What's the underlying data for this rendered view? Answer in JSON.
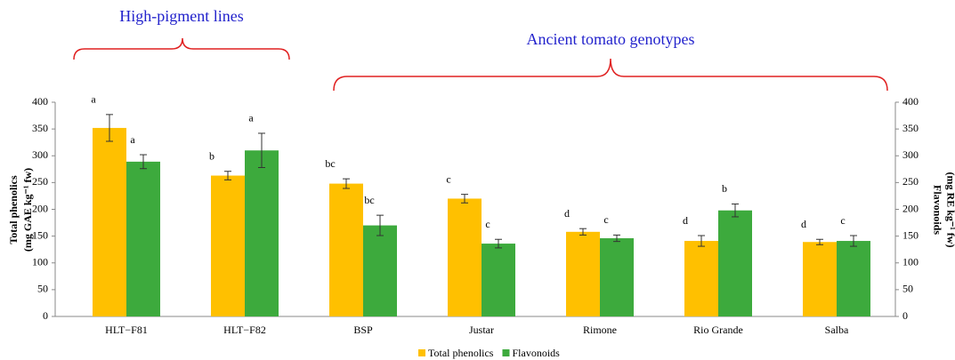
{
  "chart_data": {
    "type": "bar",
    "annotations": [
      "High-pigment lines",
      "Ancient tomato genotypes"
    ],
    "categories": [
      "HLT−F81",
      "HLT−F82",
      "BSP",
      "Justar",
      "Rimone",
      "Rio Grande",
      "Salba"
    ],
    "ylabel": [
      "Total phenolics",
      "(mg GAE kg⁻¹ fw)"
    ],
    "y2label": [
      "Flavonoids",
      "(mg RE kg⁻¹ fw)"
    ],
    "ylim": [
      0,
      400
    ],
    "yticks": [
      0,
      50,
      100,
      150,
      200,
      250,
      300,
      350,
      400
    ],
    "y2lim": [
      0,
      400
    ],
    "y2ticks": [
      0,
      50,
      100,
      150,
      200,
      250,
      300,
      350,
      400
    ],
    "legend": "bottom",
    "series": [
      {
        "name": "Total phenolics",
        "color": "#FFC000",
        "values": [
          352,
          263,
          248,
          220,
          158,
          141,
          139
        ],
        "errors": [
          25,
          8,
          9,
          8,
          6,
          10,
          5
        ],
        "letters": [
          "a",
          "b",
          "bc",
          "c",
          "d",
          "d",
          "d"
        ]
      },
      {
        "name": "Flavonoids",
        "color": "#3DAA3D",
        "axis": "y2",
        "values": [
          289,
          310,
          170,
          136,
          146,
          198,
          141
        ],
        "errors": [
          13,
          32,
          19,
          8,
          6,
          12,
          10
        ],
        "letters": [
          "a",
          "a",
          "bc",
          "c",
          "c",
          "b",
          "c"
        ]
      }
    ]
  }
}
